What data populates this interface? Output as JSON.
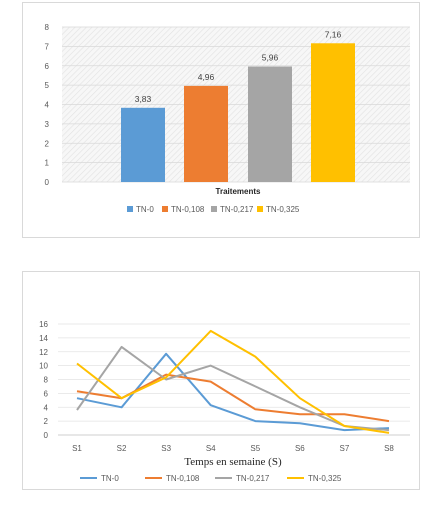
{
  "chart_data": [
    {
      "type": "bar",
      "title": "",
      "xlabel": "Traitements",
      "ylabel": "",
      "ylim": [
        0,
        8
      ],
      "yticks": [
        "0",
        "1",
        "2",
        "3",
        "4",
        "5",
        "6",
        "7",
        "8"
      ],
      "grid": true,
      "legend_position": "bottom",
      "series": [
        {
          "name": "TN-0",
          "value": 3.83,
          "label": "3,83",
          "color": "#5b9bd5"
        },
        {
          "name": "TN-0,108",
          "value": 4.96,
          "label": "4,96",
          "color": "#ed7d31"
        },
        {
          "name": "TN-0,217",
          "value": 5.96,
          "label": "5,96",
          "color": "#a5a5a5"
        },
        {
          "name": "TN-0,325",
          "value": 7.16,
          "label": "7,16",
          "color": "#ffc000"
        }
      ]
    },
    {
      "type": "line",
      "title": "",
      "xlabel": "Temps en semaine (S)",
      "ylabel": "",
      "ylim": [
        0,
        16
      ],
      "yticks": [
        "0",
        "2",
        "4",
        "6",
        "8",
        "10",
        "12",
        "14",
        "16"
      ],
      "grid": true,
      "legend_position": "bottom",
      "categories": [
        "S1",
        "S2",
        "S3",
        "S4",
        "S5",
        "S6",
        "S7",
        "S8"
      ],
      "series": [
        {
          "name": "TN-0",
          "color": "#5b9bd5",
          "values": [
            5.3,
            4.0,
            11.7,
            4.3,
            2.0,
            1.7,
            0.7,
            1.0
          ]
        },
        {
          "name": "TN-0,108",
          "color": "#ed7d31",
          "values": [
            6.3,
            5.3,
            8.7,
            7.7,
            3.7,
            3.0,
            3.0,
            2.0
          ]
        },
        {
          "name": "TN-0,217",
          "color": "#a5a5a5",
          "values": [
            3.6,
            12.7,
            8.0,
            10.0,
            7.0,
            4.0,
            1.3,
            0.7
          ]
        },
        {
          "name": "TN-0,325",
          "color": "#ffc000",
          "values": [
            10.3,
            5.3,
            8.3,
            15.0,
            11.3,
            5.3,
            1.3,
            0.3
          ]
        }
      ]
    }
  ]
}
